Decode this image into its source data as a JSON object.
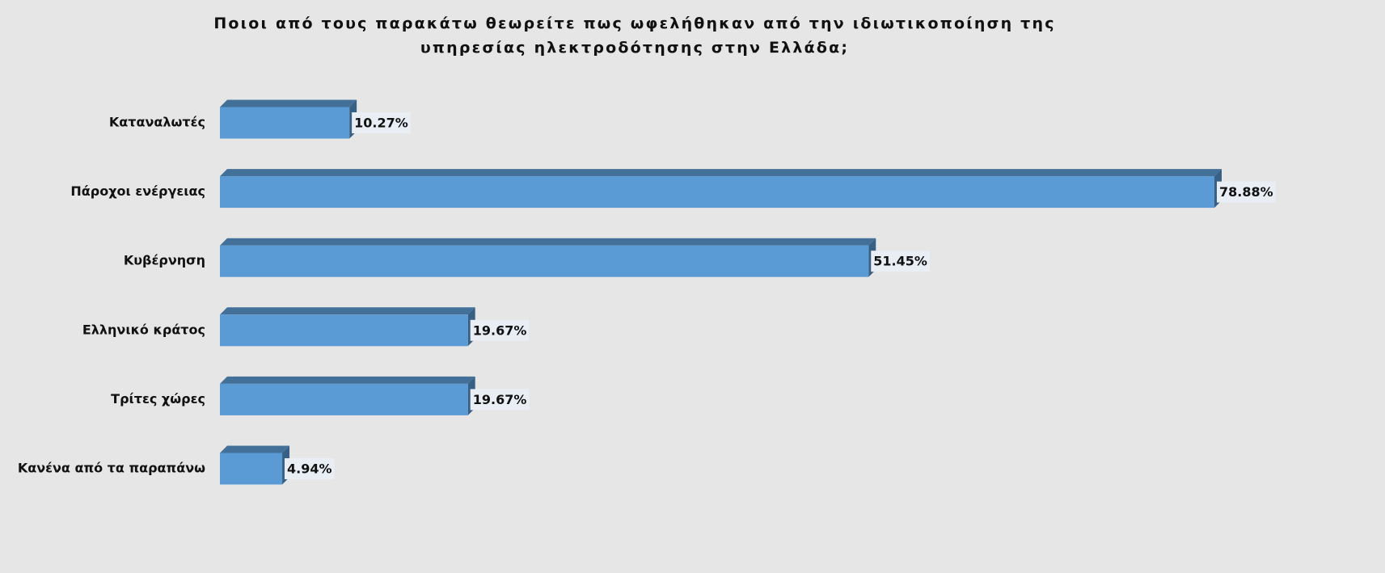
{
  "chart_data": {
    "type": "bar3d_horizontal",
    "title": "Ποιοι από τους παρακάτω θεωρείτε πως ωφελήθηκαν από την ιδιωτικοποίηση της υπηρεσίας ηλεκτροδότησης στην Ελλάδα;",
    "categories": [
      "Καταναλωτές",
      "Πάροχοι ενέργειας",
      "Κυβέρνηση",
      "Ελληνικό κράτος",
      "Τρίτες χώρες",
      "Κανένα από τα παραπάνω"
    ],
    "values": [
      10.27,
      78.88,
      51.45,
      19.67,
      19.67,
      4.94
    ],
    "value_labels": [
      "10.27%",
      "78.88%",
      "51.45%",
      "19.67%",
      "19.67%",
      "4.94%"
    ],
    "color": "#5b9bd5"
  }
}
